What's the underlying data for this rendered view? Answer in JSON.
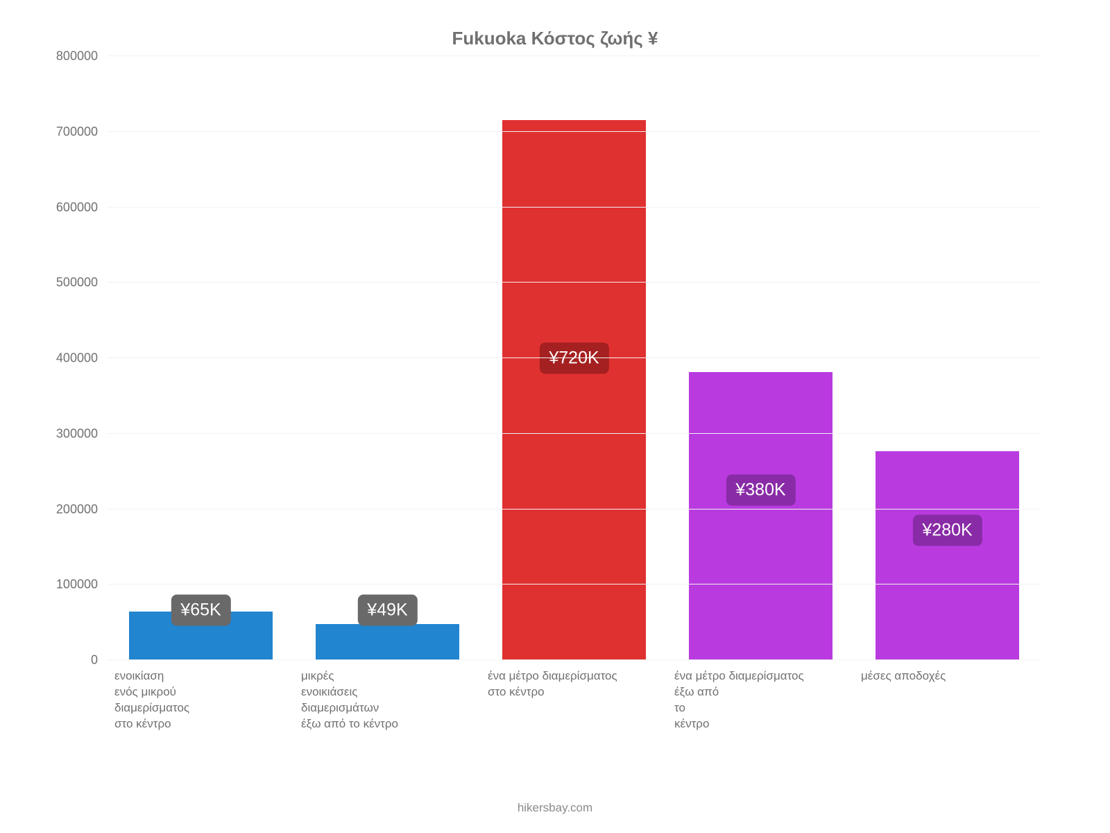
{
  "chart": {
    "type": "bar",
    "title": "Fukuoka Κόστος ζωής ¥",
    "title_fontsize": 26,
    "title_color": "#707070",
    "background_color": "#ffffff",
    "grid_color": "#f2f2f2",
    "axis_line_color": "#c7c7c7",
    "y": {
      "min": 0,
      "max": 800000,
      "tick_step": 100000,
      "ticks": [
        "0",
        "100000",
        "200000",
        "300000",
        "400000",
        "500000",
        "600000",
        "700000",
        "800000"
      ],
      "tick_fontsize": 18,
      "tick_color": "#707070"
    },
    "x": {
      "label_fontsize": 17,
      "label_color": "#707070",
      "labels": [
        "ενοικίαση\nενός μικρού\nδιαμερίσματος\nστο κέντρο",
        "μικρές\nενοικιάσεις\nδιαμερισμάτων\nέξω από το κέντρο",
        "ένα μέτρο διαμερίσματος\nστο κέντρο",
        "ένα μέτρο διαμερίσματος\nέξω από\nτο\nκέντρο",
        "μέσες αποδοχές"
      ]
    },
    "bars": [
      {
        "value": 65000,
        "color": "#2185d0",
        "badge_text": "¥65K",
        "badge_bg": "#696969",
        "badge_top_value": 66000
      },
      {
        "value": 49000,
        "color": "#2185d0",
        "badge_text": "¥49K",
        "badge_bg": "#696969",
        "badge_top_value": 66000
      },
      {
        "value": 716000,
        "color": "#e03131",
        "badge_text": "¥720K",
        "badge_bg": "#a52020",
        "badge_top_value": 400000
      },
      {
        "value": 383000,
        "color": "#b93be0",
        "badge_text": "¥380K",
        "badge_bg": "#892ba6",
        "badge_top_value": 225000
      },
      {
        "value": 278000,
        "color": "#b93be0",
        "badge_text": "¥280K",
        "badge_bg": "#892ba6",
        "badge_top_value": 172000
      }
    ],
    "bar_width_pct": 78,
    "badge_fontsize": 25,
    "attribution": "hikersbay.com",
    "attribution_fontsize": 17,
    "attribution_color": "#8a8a8a"
  }
}
